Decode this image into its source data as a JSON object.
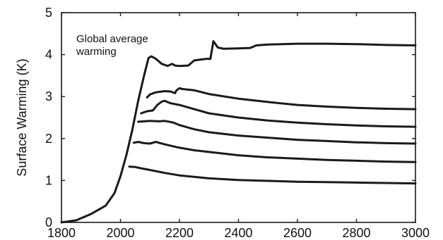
{
  "chart_data": {
    "type": "line",
    "ylabel": "Surface Warming (K)",
    "xlabel": "",
    "annotation": "Global average warming",
    "annotation_lines": [
      "Global average",
      "warming"
    ],
    "xlim": [
      1800,
      3000
    ],
    "ylim": [
      0,
      5
    ],
    "xticks": [
      1800,
      2000,
      2200,
      2400,
      2600,
      2800,
      3000
    ],
    "yticks": [
      0,
      1,
      2,
      3,
      4,
      5
    ],
    "grid": false,
    "line_color": "#1a1a1a",
    "series": [
      {
        "x": [
          1800,
          1850,
          1900,
          1950,
          1980,
          2000,
          2020,
          2040,
          2060,
          2080,
          2095,
          2105,
          2120,
          2140,
          2160,
          2175,
          2185,
          2200,
          2230,
          2250,
          2290,
          2305,
          2315,
          2330,
          2350,
          2400,
          2440,
          2460,
          2500,
          2600,
          2700,
          2800,
          2900,
          3000
        ],
        "values": [
          0,
          0.05,
          0.2,
          0.4,
          0.7,
          1.1,
          1.6,
          2.2,
          2.9,
          3.5,
          3.92,
          3.96,
          3.9,
          3.78,
          3.73,
          3.78,
          3.74,
          3.73,
          3.74,
          3.86,
          3.9,
          3.9,
          4.32,
          4.17,
          4.14,
          4.15,
          4.16,
          4.22,
          4.24,
          4.26,
          4.26,
          4.25,
          4.23,
          4.22
        ]
      },
      {
        "x": [
          2090,
          2100,
          2120,
          2150,
          2170,
          2185,
          2190,
          2200,
          2210,
          2250,
          2300,
          2400,
          2500,
          2600,
          2700,
          2800,
          2900,
          3000
        ],
        "values": [
          2.98,
          3.05,
          3.1,
          3.13,
          3.12,
          3.08,
          3.15,
          3.2,
          3.18,
          3.15,
          3.06,
          2.95,
          2.87,
          2.8,
          2.76,
          2.73,
          2.71,
          2.7
        ]
      },
      {
        "x": [
          2070,
          2090,
          2110,
          2125,
          2140,
          2150,
          2170,
          2200,
          2250,
          2300,
          2400,
          2500,
          2600,
          2700,
          2800,
          2900,
          3000
        ],
        "values": [
          2.6,
          2.65,
          2.67,
          2.8,
          2.88,
          2.9,
          2.84,
          2.8,
          2.7,
          2.6,
          2.5,
          2.43,
          2.38,
          2.34,
          2.31,
          2.29,
          2.28
        ]
      },
      {
        "x": [
          2060,
          2080,
          2100,
          2130,
          2150,
          2180,
          2200,
          2250,
          2300,
          2400,
          2500,
          2600,
          2700,
          2800,
          2900,
          3000
        ],
        "values": [
          2.4,
          2.41,
          2.42,
          2.41,
          2.42,
          2.38,
          2.32,
          2.22,
          2.15,
          2.07,
          2.02,
          1.97,
          1.94,
          1.91,
          1.89,
          1.88
        ]
      },
      {
        "x": [
          2045,
          2060,
          2080,
          2100,
          2120,
          2130,
          2150,
          2200,
          2250,
          2300,
          2400,
          2500,
          2600,
          2700,
          2800,
          2900,
          3000
        ],
        "values": [
          1.9,
          1.92,
          1.89,
          1.88,
          1.92,
          1.9,
          1.86,
          1.78,
          1.72,
          1.68,
          1.6,
          1.55,
          1.52,
          1.49,
          1.47,
          1.45,
          1.44
        ]
      },
      {
        "x": [
          2030,
          2050,
          2070,
          2100,
          2150,
          2200,
          2300,
          2400,
          2500,
          2600,
          2700,
          2800,
          2900,
          3000
        ],
        "values": [
          1.33,
          1.32,
          1.29,
          1.25,
          1.18,
          1.12,
          1.05,
          1.01,
          0.99,
          0.97,
          0.96,
          0.95,
          0.94,
          0.93
        ]
      }
    ]
  }
}
